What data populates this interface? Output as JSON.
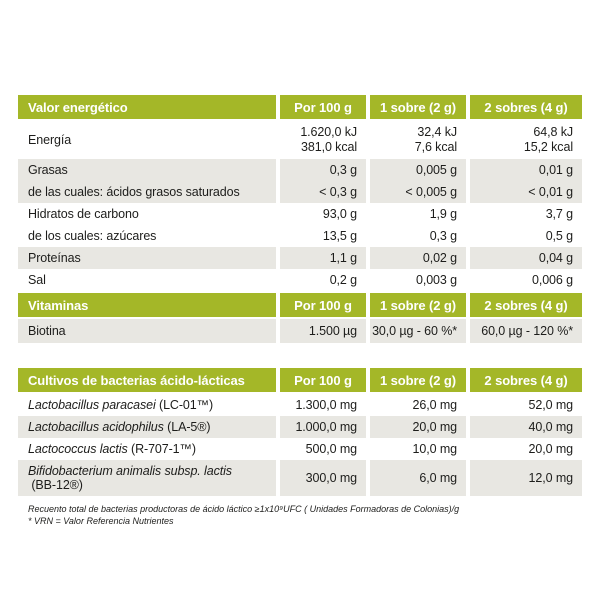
{
  "colors": {
    "header_green": "#a4b728",
    "row_gray": "#e8e7e2",
    "header_text": "#ffffff",
    "body_text": "#1d1d1b"
  },
  "energy_table": {
    "title": "Valor energético",
    "columns": [
      "Por 100 g",
      "1 sobre (2 g)",
      "2 sobres (4 g)"
    ],
    "energy_row": {
      "label": "Energía",
      "per100": [
        "1.620,0 kJ",
        "381,0 kcal"
      ],
      "sobre1": [
        "32,4 kJ",
        "7,6 kcal"
      ],
      "sobre2": [
        "64,8 kJ",
        "15,2 kcal"
      ]
    },
    "rows": [
      {
        "label": "Grasas",
        "per100": "0,3 g",
        "sobre1": "0,005 g",
        "sobre2": "0,01 g"
      },
      {
        "label": "de las cuales: ácidos grasos saturados",
        "per100": "< 0,3 g",
        "sobre1": "< 0,005 g",
        "sobre2": "< 0,01 g"
      },
      {
        "label": "Hidratos de carbono",
        "per100": "93,0 g",
        "sobre1": "1,9 g",
        "sobre2": "3,7 g"
      },
      {
        "label": "de los cuales: azúcares",
        "per100": "13,5 g",
        "sobre1": "0,3 g",
        "sobre2": "0,5 g"
      },
      {
        "label": "Proteínas",
        "per100": "1,1 g",
        "sobre1": "0,02 g",
        "sobre2": "0,04 g"
      },
      {
        "label": "Sal",
        "per100": "0,2 g",
        "sobre1": "0,003 g",
        "sobre2": "0,006 g"
      }
    ]
  },
  "vitamins_table": {
    "title": "Vitaminas",
    "columns": [
      "Por 100 g",
      "1 sobre (2 g)",
      "2 sobres (4 g)"
    ],
    "rows": [
      {
        "label": "Biotina",
        "per100": "1.500 µg",
        "sobre1": "30,0 µg - 60 %*",
        "sobre2": "60,0 µg - 120 %*"
      }
    ]
  },
  "cultures_table": {
    "title": "Cultivos de bacterias ácido-lácticas",
    "columns": [
      "Por 100 g",
      "1 sobre (2 g)",
      "2 sobres (4 g)"
    ],
    "rows": [
      {
        "species": "Lactobacillus paracasei",
        "code": " (LC-01™)",
        "per100": "1.300,0 mg",
        "sobre1": "26,0 mg",
        "sobre2": "52,0 mg"
      },
      {
        "species": "Lactobacillus acidophilus",
        "code": " (LA-5®)",
        "per100": "1.000,0 mg",
        "sobre1": "20,0 mg",
        "sobre2": "40,0 mg"
      },
      {
        "species": "Lactococcus lactis",
        "code": " (R-707-1™)",
        "per100": "500,0 mg",
        "sobre1": "10,0 mg",
        "sobre2": "20,0 mg"
      },
      {
        "species": "Bifidobacterium animalis subsp. lactis",
        "code": " (BB-12®)",
        "per100": "300,0 mg",
        "sobre1": "6,0 mg",
        "sobre2": "12,0 mg"
      }
    ]
  },
  "footnotes": [
    "Recuento total de bacterias productoras de ácido láctico ≥1x10⁹UFC ( Unidades Formadoras de Colonias)/g",
    "* VRN = Valor Referencia Nutrientes"
  ]
}
